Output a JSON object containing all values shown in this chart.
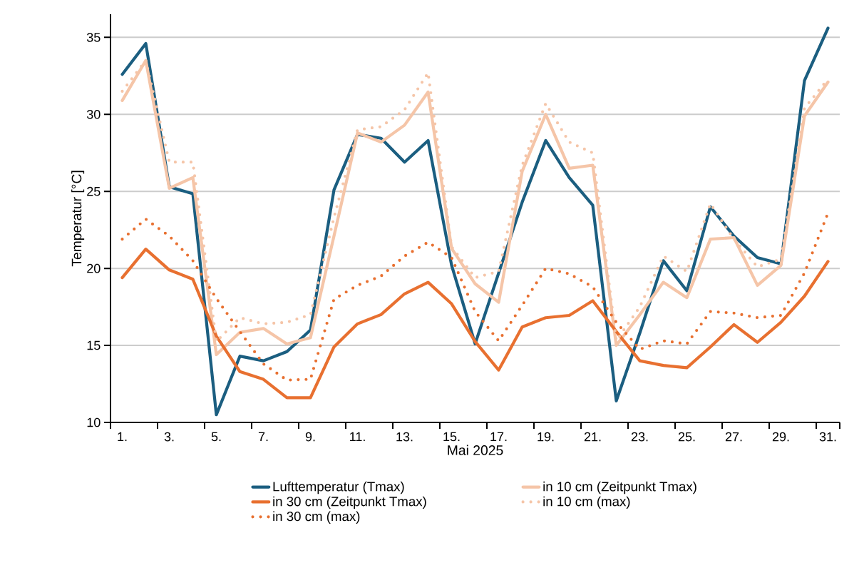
{
  "chart_data": {
    "type": "line",
    "xlabel": "Mai 2025",
    "ylabel": "Temperatur [°C]",
    "categories": [
      "1.",
      null,
      "3.",
      null,
      "5.",
      null,
      "7.",
      null,
      "9.",
      null,
      "11.",
      null,
      "13.",
      null,
      "15.",
      null,
      "17.",
      null,
      "19.",
      null,
      "21.",
      null,
      "23.",
      null,
      "25.",
      null,
      "27.",
      null,
      "29.",
      null,
      "31."
    ],
    "ylim": [
      10,
      36.5
    ],
    "yticks": [
      10,
      15,
      20,
      25,
      30,
      35
    ],
    "grid": "y",
    "legend": "bottom",
    "series": [
      {
        "name": "Lufttemperatur (Tmax)",
        "color": "#1b5e80",
        "line_style": "solid",
        "values": [
          32.6,
          34.6,
          25.3,
          24.85,
          10.5,
          14.3,
          14.0,
          14.6,
          16.0,
          25.1,
          28.7,
          28.45,
          26.9,
          28.3,
          20.2,
          15.1,
          19.7,
          24.3,
          28.3,
          25.9,
          24.1,
          11.4,
          15.8,
          20.5,
          18.55,
          24.0,
          22.1,
          20.7,
          20.3,
          32.2,
          35.6
        ]
      },
      {
        "name": "in 10 cm (Zeitpunkt Tmax)",
        "color": "#f5c5a8",
        "line_style": "solid",
        "values": [
          30.9,
          33.5,
          25.2,
          25.9,
          14.4,
          15.85,
          16.1,
          15.1,
          15.5,
          22.1,
          28.8,
          28.2,
          29.3,
          31.45,
          21.3,
          19.0,
          17.8,
          26.3,
          30.0,
          26.5,
          26.7,
          15.0,
          17.0,
          19.1,
          18.1,
          21.9,
          22.0,
          18.9,
          20.2,
          29.9,
          32.1
        ]
      },
      {
        "name": "in 30 cm (Zeitpunkt Tmax)",
        "color": "#e87030",
        "line_style": "solid",
        "values": [
          19.4,
          21.25,
          19.9,
          19.3,
          15.6,
          13.3,
          12.8,
          11.6,
          11.6,
          14.9,
          16.4,
          17.0,
          18.35,
          19.1,
          17.7,
          15.25,
          13.4,
          16.2,
          16.8,
          16.95,
          17.9,
          15.9,
          14.0,
          13.7,
          13.55,
          14.9,
          16.35,
          15.2,
          16.5,
          18.2,
          20.45
        ]
      },
      {
        "name": "in 10 cm (max)",
        "color": "#f5c5a8",
        "line_style": "dotted",
        "values": [
          31.5,
          33.5,
          26.9,
          26.9,
          15.25,
          16.8,
          16.4,
          16.5,
          17.0,
          23.3,
          29.0,
          29.2,
          30.3,
          32.7,
          21.4,
          19.4,
          19.8,
          26.7,
          30.7,
          28.2,
          27.5,
          15.3,
          17.5,
          20.8,
          19.8,
          24.2,
          21.9,
          20.1,
          20.6,
          30.4,
          32.3
        ]
      },
      {
        "name": "in 30 cm (max)",
        "color": "#e87030",
        "line_style": "dotted",
        "values": [
          21.9,
          23.2,
          22.1,
          20.5,
          18.05,
          15.9,
          13.8,
          12.75,
          12.8,
          18.0,
          18.9,
          19.5,
          20.8,
          21.7,
          20.7,
          17.2,
          15.3,
          17.6,
          20.0,
          19.65,
          18.8,
          16.5,
          14.75,
          15.3,
          15.1,
          17.2,
          17.1,
          16.8,
          16.95,
          19.7,
          23.6
        ]
      }
    ]
  }
}
